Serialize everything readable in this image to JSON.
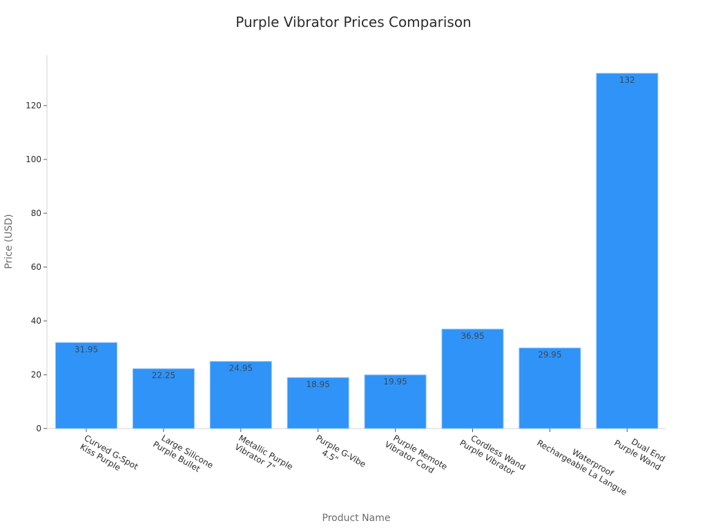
{
  "chart_data": {
    "type": "bar",
    "title": "Purple Vibrator Prices Comparison",
    "xlabel": "Product Name",
    "ylabel": "Price (USD)",
    "ylim": [
      0,
      137
    ],
    "yticks": [
      0,
      20,
      40,
      60,
      80,
      100,
      120
    ],
    "grid": false,
    "legend": null,
    "bar_color": "#2f93f7",
    "categories": [
      [
        "Curved G-Spot",
        "Kiss Purple"
      ],
      [
        "Large Silicone",
        "Purple Bullet"
      ],
      [
        "Metallic Purple",
        "Vibrator 7\""
      ],
      [
        "Purple G-Vibe",
        "4.5\""
      ],
      [
        "Purple Remote",
        "Vibrator Cord"
      ],
      [
        "Cordless Wand",
        "Purple Vibrator"
      ],
      [
        "Waterproof",
        "Rechargeable La Langue"
      ],
      [
        "Dual End",
        "Purple Wand"
      ]
    ],
    "values": [
      31.95,
      22.25,
      24.95,
      18.95,
      19.95,
      36.95,
      29.95,
      132
    ],
    "value_labels": [
      "31.95",
      "22.25",
      "24.95",
      "18.95",
      "19.95",
      "36.95",
      "29.95",
      "132"
    ]
  }
}
